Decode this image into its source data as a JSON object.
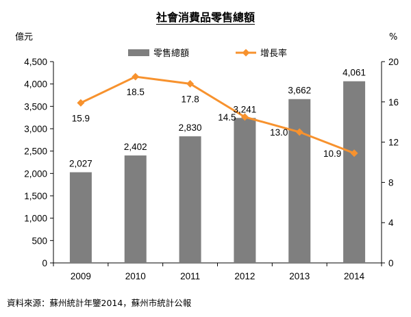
{
  "chart_data": {
    "type": "bar",
    "title": "社會消費品零售總額",
    "categories": [
      "2009",
      "2010",
      "2011",
      "2012",
      "2013",
      "2014"
    ],
    "series": [
      {
        "name": "零售總額",
        "type": "bar",
        "axis": "left",
        "color": "#7f7f7f",
        "values": [
          2027,
          2402,
          2830,
          3241,
          3662,
          4061
        ],
        "labels": [
          "2,027",
          "2,402",
          "2,830",
          "3,241",
          "3,662",
          "4,061"
        ]
      },
      {
        "name": "增長率",
        "type": "line",
        "axis": "right",
        "color": "#f7922e",
        "values": [
          15.9,
          18.5,
          17.8,
          14.5,
          13.0,
          10.9
        ],
        "labels": [
          "15.9",
          "18.5",
          "17.8",
          "14.5",
          "13.0",
          "10.9"
        ]
      }
    ],
    "y_left": {
      "unit": "億元",
      "lim": [
        0,
        4500
      ],
      "ticks": [
        0,
        500,
        1000,
        1500,
        2000,
        2500,
        3000,
        3500,
        4000,
        4500
      ],
      "tick_labels": [
        "0",
        "500",
        "1,000",
        "1,500",
        "2,000",
        "2,500",
        "3,000",
        "3,500",
        "4,000",
        "4,500"
      ]
    },
    "y_right": {
      "unit": "%",
      "lim": [
        0,
        20
      ],
      "ticks": [
        0,
        4,
        8,
        12,
        16,
        20
      ],
      "tick_labels": [
        "0",
        "4",
        "8",
        "12",
        "16",
        "20"
      ]
    },
    "legend": "top-center",
    "grid": false
  },
  "source": "資料來源：蘇州統計年鑒2014，蘇州市統計公報"
}
